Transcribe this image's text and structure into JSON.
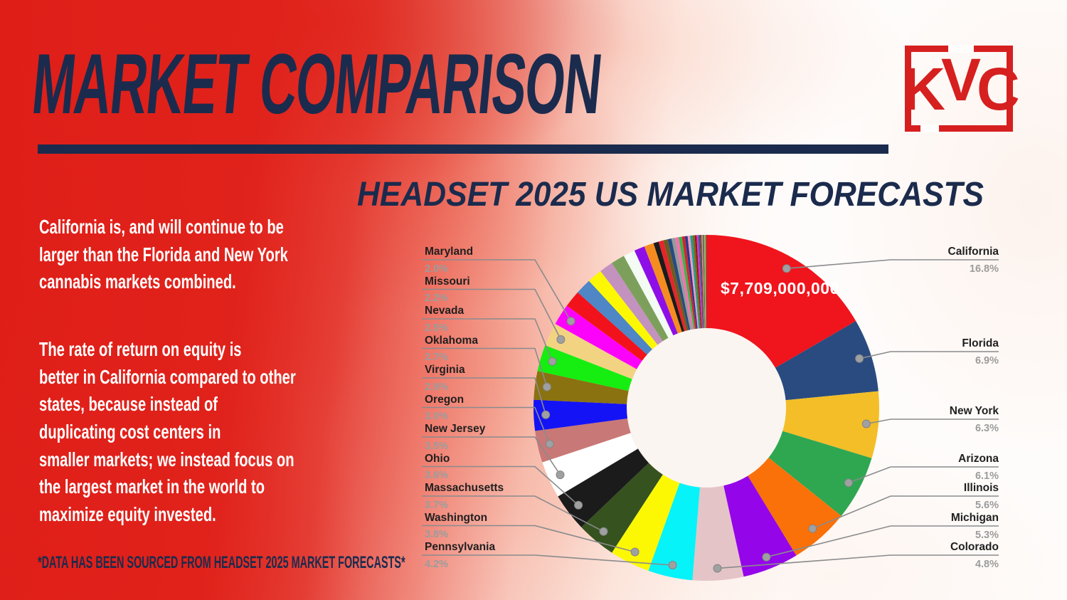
{
  "page": {
    "title": "MARKET COMPARISON",
    "subtitle": "HEADSET 2025 US MARKET FORECASTS",
    "logo_letters": [
      "K",
      "V",
      "C"
    ],
    "paragraph1": "California is, and will continue to be\nlarger than the Florida and New York\ncannabis markets combined.",
    "paragraph2": "The rate of return on equity is\nbetter in California compared to other\nstates, because instead of\nduplicating cost centers in\nsmaller markets; we instead focus on\nthe largest market in the world to\nmaximize equity invested.",
    "footnote": "*DATA HAS BEEN SOURCED FROM HEADSET 2025 MARKET FORECASTS*"
  },
  "chart_data": {
    "type": "pie",
    "donut": true,
    "title": "HEADSET 2025 US MARKET FORECASTS",
    "center_label": "$7,709,000,000",
    "center_label_note": "shown on California slice",
    "start_angle_deg": 0,
    "direction": "clockwise",
    "legend_position": "callout-labels-left-and-right",
    "hole_color": "#fbf5f1",
    "segments": [
      {
        "label": "California",
        "value": 16.8,
        "color": "#f0141c",
        "side": "right"
      },
      {
        "label": "Florida",
        "value": 6.9,
        "color": "#2a4b80",
        "side": "right"
      },
      {
        "label": "New York",
        "value": 6.3,
        "color": "#f3be27",
        "side": "right"
      },
      {
        "label": "Arizona",
        "value": 6.1,
        "color": "#2fa751",
        "side": "right"
      },
      {
        "label": "Illinois",
        "value": 5.6,
        "color": "#f97108",
        "side": "right"
      },
      {
        "label": "Michigan",
        "value": 5.3,
        "color": "#9406e9",
        "side": "right"
      },
      {
        "label": "Colorado",
        "value": 4.8,
        "color": "#e5c4c7",
        "side": "right"
      },
      {
        "label": "Pennsylvania",
        "value": 4.2,
        "color": "#06f3f9",
        "side": "left"
      },
      {
        "label": "Washington",
        "value": 3.8,
        "color": "#fcf803",
        "side": "left"
      },
      {
        "label": "Massachusetts",
        "value": 3.7,
        "color": "#35521f",
        "side": "left"
      },
      {
        "label": "Ohio",
        "value": 3.6,
        "color": "#1b1b1b",
        "side": "left"
      },
      {
        "label": "New Jersey",
        "value": 3.5,
        "color": "#ffffff",
        "side": "left"
      },
      {
        "label": "Oregon",
        "value": 3.0,
        "color": "#c87876",
        "side": "left"
      },
      {
        "label": "Virginia",
        "value": 2.9,
        "color": "#1413f5",
        "side": "left"
      },
      {
        "label": "Oklahoma",
        "value": 2.7,
        "color": "#8a7211",
        "side": "left"
      },
      {
        "label": "Nevada",
        "value": 2.5,
        "color": "#15ee10",
        "side": "left"
      },
      {
        "label": "Missouri",
        "value": 2.2,
        "color": "#f2d382",
        "side": "left"
      },
      {
        "label": "Maryland",
        "value": 2.0,
        "color": "#fb02fb",
        "side": "left"
      }
    ],
    "other_segments": [
      {
        "value": 1.6,
        "color": "#f2121b"
      },
      {
        "value": 1.5,
        "color": "#4e86c6"
      },
      {
        "value": 1.4,
        "color": "#fcf803"
      },
      {
        "value": 1.3,
        "color": "#c492be"
      },
      {
        "value": 1.3,
        "color": "#7ca05c"
      },
      {
        "value": 1.1,
        "color": "#f3fbf4"
      },
      {
        "value": 1.0,
        "color": "#8e0ee8"
      },
      {
        "value": 0.9,
        "color": "#f68c1f"
      },
      {
        "value": 0.5,
        "color": "#1b1b1b"
      },
      {
        "value": 0.45,
        "color": "#e8232b"
      },
      {
        "value": 0.4,
        "color": "#6e5b20"
      },
      {
        "value": 0.38,
        "color": "#274b7e"
      },
      {
        "value": 0.35,
        "color": "#97999b"
      },
      {
        "value": 0.33,
        "color": "#f272ac"
      },
      {
        "value": 0.3,
        "color": "#3bb54a"
      },
      {
        "value": 0.28,
        "color": "#d5242c"
      },
      {
        "value": 0.26,
        "color": "#2b3990"
      },
      {
        "value": 0.24,
        "color": "#f09cc3"
      },
      {
        "value": 0.22,
        "color": "#1b9e91"
      },
      {
        "value": 0.2,
        "color": "#7a6a10"
      },
      {
        "value": 0.18,
        "color": "#8b1a1a"
      },
      {
        "value": 0.16,
        "color": "#e82bd3"
      },
      {
        "value": 0.15,
        "color": "#2c5f9e"
      },
      {
        "value": 0.14,
        "color": "#6b4a1e"
      },
      {
        "value": 0.13,
        "color": "#ee6fa0"
      },
      {
        "value": 0.12,
        "color": "#2e7d36"
      },
      {
        "value": 0.11,
        "color": "#f49a3c"
      },
      {
        "value": 0.1,
        "color": "#109e8e"
      }
    ]
  }
}
